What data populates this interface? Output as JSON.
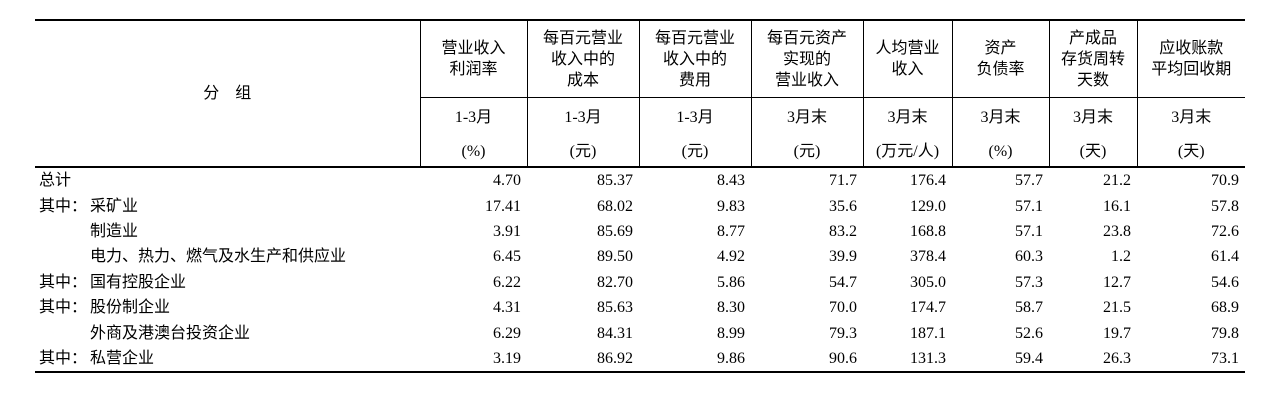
{
  "header": {
    "group_label": "分　组",
    "columns": [
      {
        "name": [
          "营业收入",
          "利润率"
        ],
        "period": "1-3月",
        "unit": "(%)"
      },
      {
        "name": [
          "每百元营业",
          "收入中的",
          "成本"
        ],
        "period": "1-3月",
        "unit": "(元)"
      },
      {
        "name": [
          "每百元营业",
          "收入中的",
          "费用"
        ],
        "period": "1-3月",
        "unit": "(元)"
      },
      {
        "name": [
          "每百元资产",
          "实现的",
          "营业收入"
        ],
        "period": "3月末",
        "unit": "(元)"
      },
      {
        "name": [
          "人均营业",
          "收入"
        ],
        "period": "3月末",
        "unit": "(万元/人)"
      },
      {
        "name": [
          "资产",
          "负债率"
        ],
        "period": "3月末",
        "unit": "(%)"
      },
      {
        "name": [
          "产成品",
          "存货周转",
          "天数"
        ],
        "period": "3月末",
        "unit": "(天)"
      },
      {
        "name": [
          "应收账款",
          "平均回收期"
        ],
        "period": "3月末",
        "unit": "(天)"
      }
    ]
  },
  "rows": [
    {
      "label": "总计",
      "level": 0,
      "values": [
        "4.70",
        "85.37",
        "8.43",
        "71.7",
        "176.4",
        "57.7",
        "21.2",
        "70.9"
      ]
    },
    {
      "prefix": "其中：",
      "label": "采矿业",
      "level": 0,
      "values": [
        "17.41",
        "68.02",
        "9.83",
        "35.6",
        "129.0",
        "57.1",
        "16.1",
        "57.8"
      ]
    },
    {
      "label": "制造业",
      "level": 1,
      "values": [
        "3.91",
        "85.69",
        "8.77",
        "83.2",
        "168.8",
        "57.1",
        "23.8",
        "72.6"
      ]
    },
    {
      "label": "电力、热力、燃气及水生产和供应业",
      "level": 1,
      "values": [
        "6.45",
        "89.50",
        "4.92",
        "39.9",
        "378.4",
        "60.3",
        "1.2",
        "61.4"
      ]
    },
    {
      "prefix": "其中：",
      "label": "国有控股企业",
      "level": 0,
      "values": [
        "6.22",
        "82.70",
        "5.86",
        "54.7",
        "305.0",
        "57.3",
        "12.7",
        "54.6"
      ]
    },
    {
      "prefix": "其中：",
      "label": "股份制企业",
      "level": 0,
      "values": [
        "4.31",
        "85.63",
        "8.30",
        "70.0",
        "174.7",
        "58.7",
        "21.5",
        "68.9"
      ]
    },
    {
      "label": "外商及港澳台投资企业",
      "level": 1,
      "values": [
        "6.29",
        "84.31",
        "8.99",
        "79.3",
        "187.1",
        "52.6",
        "19.7",
        "79.8"
      ]
    },
    {
      "prefix": "其中：",
      "label": "私营企业",
      "level": 0,
      "values": [
        "3.19",
        "86.92",
        "9.86",
        "90.6",
        "131.3",
        "59.4",
        "26.3",
        "73.1"
      ]
    }
  ]
}
